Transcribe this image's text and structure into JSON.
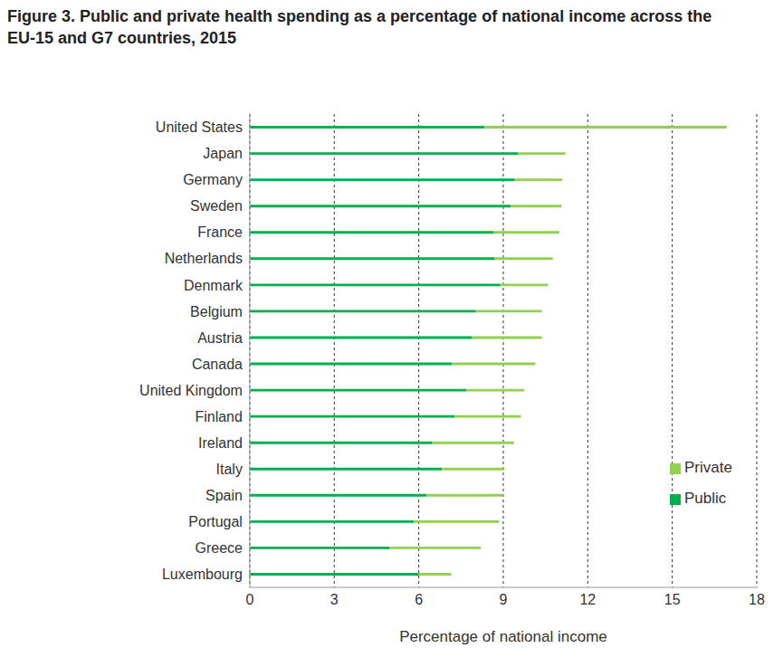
{
  "chart_data": {
    "type": "bar",
    "title": "Figure 3. Public and private health spending as a percentage of national income across the EU-15 and G7 countries, 2015",
    "orientation": "horizontal",
    "stacked": true,
    "x_label": "Percentage of national income",
    "categories": [
      "United States",
      "Japan",
      "Germany",
      "Sweden",
      "France",
      "Netherlands",
      "Denmark",
      "Belgium",
      "Austria",
      "Canada",
      "United Kingdom",
      "Finland",
      "Ireland",
      "Italy",
      "Spain",
      "Portugal",
      "Greece",
      "Luxembourg"
    ],
    "series": [
      {
        "name": "Public",
        "color": "#00b050",
        "values": [
          8.34,
          9.52,
          9.41,
          9.27,
          8.65,
          8.7,
          8.9,
          8.03,
          7.89,
          7.18,
          7.69,
          7.27,
          6.48,
          6.82,
          6.28,
          5.83,
          4.96,
          6.0
        ]
      },
      {
        "name": "Private",
        "color": "#92d050",
        "values": [
          8.59,
          1.69,
          1.69,
          1.8,
          2.34,
          2.06,
          1.69,
          2.34,
          2.48,
          2.96,
          2.06,
          2.36,
          2.9,
          2.22,
          2.71,
          3.02,
          3.24,
          1.15
        ]
      }
    ],
    "xlim": [
      0,
      18
    ],
    "xticks": [
      0,
      3,
      6,
      9,
      12,
      15,
      18
    ],
    "grid": true,
    "legend": "lower right"
  }
}
